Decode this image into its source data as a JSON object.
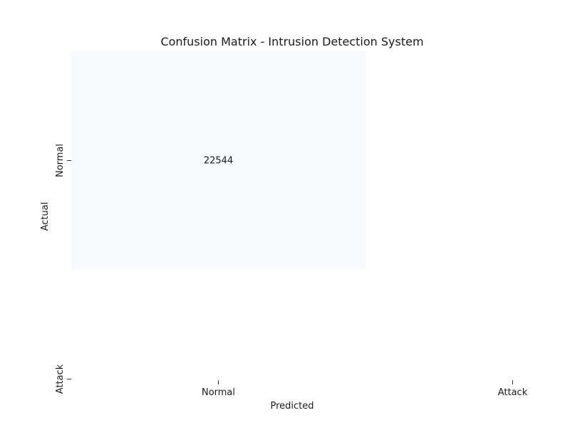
{
  "chart_data": {
    "type": "heatmap",
    "title": "Confusion Matrix - Intrusion Detection System",
    "xlabel": "Predicted",
    "ylabel": "Actual",
    "x_categories": [
      "Normal",
      "Attack"
    ],
    "y_categories": [
      "Normal",
      "Attack"
    ],
    "cells": [
      {
        "actual": "Normal",
        "predicted": "Normal",
        "value": 22544,
        "label": "22544"
      }
    ],
    "colormap": "Blues",
    "cell_color": "#f7fbff",
    "grid": false,
    "colorbar": false
  }
}
